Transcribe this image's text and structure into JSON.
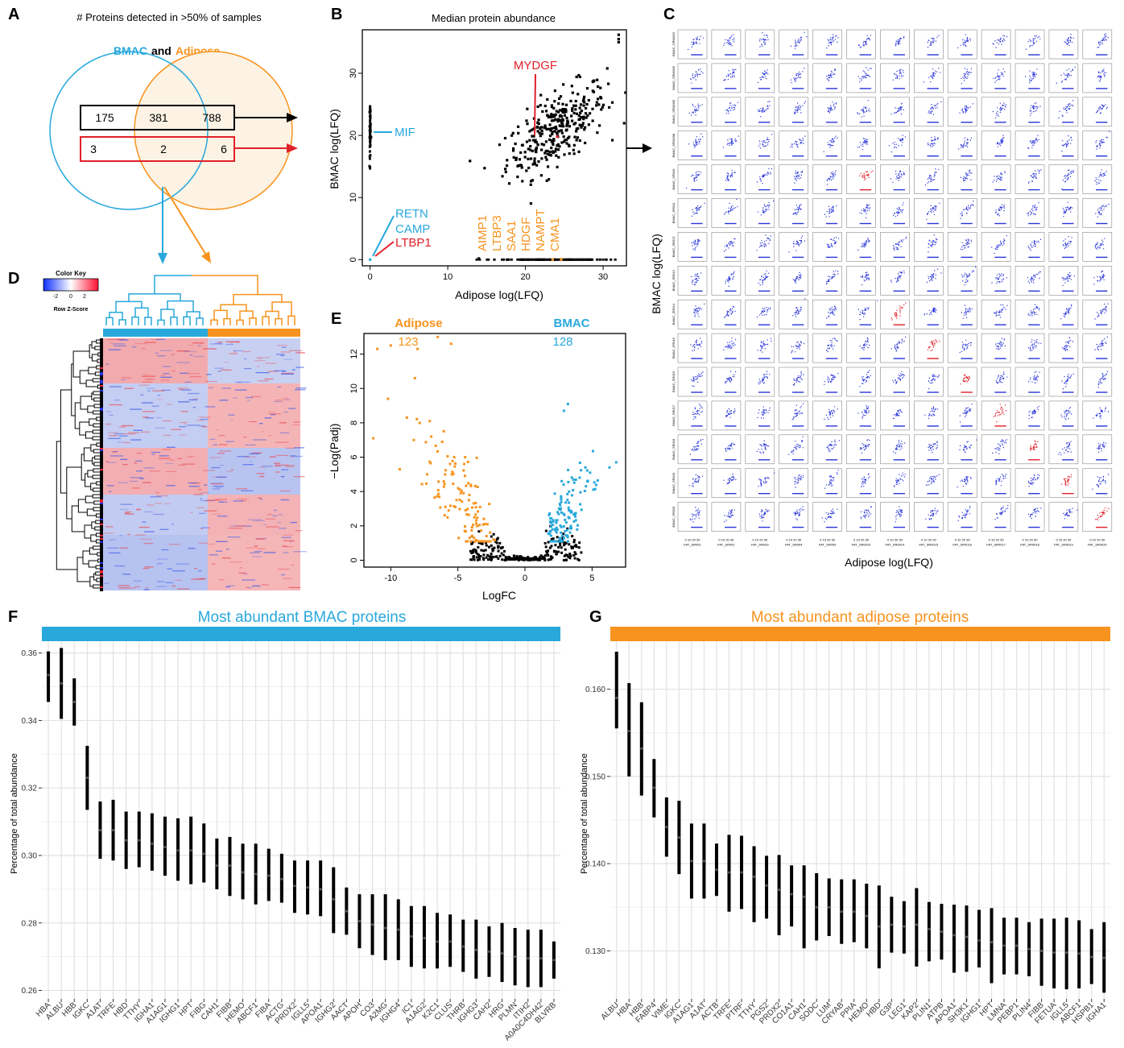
{
  "colors": {
    "bmac": "#29a8dc",
    "adipose": "#f7931e",
    "red": "#e0202a",
    "blue_points": "#1f2bd0",
    "black": "#000000"
  },
  "panels": {
    "A": "A",
    "B": "B",
    "C": "C",
    "D": "D",
    "E": "E",
    "F": "F",
    "G": "G"
  },
  "panel_a": {
    "title": "# Proteins detected in >50% of samples",
    "legend_bmac": "BMAC",
    "legend_and": "and",
    "legend_adipose": "Adipose",
    "row1": [
      "175",
      "381",
      "788"
    ],
    "row2": [
      "3",
      "2",
      "6"
    ]
  },
  "chart_data": [
    {
      "panel": "B",
      "type": "scatter",
      "title": "Median protein abundance",
      "xlabel": "Adipose log(LFQ)",
      "ylabel": "BMAC log(LFQ)",
      "xlim": [
        -1,
        33
      ],
      "ylim": [
        -1,
        37
      ],
      "xticks": [
        0,
        10,
        20,
        30
      ],
      "yticks": [
        0,
        10,
        20,
        30
      ],
      "labels_bmac": [
        "MIF",
        "RETN",
        "CAMP"
      ],
      "labels_red": [
        "MYDGF",
        "LTBP1"
      ],
      "labels_adipose": [
        "AIMP1",
        "LTBP3",
        "SAA1",
        "HDGF",
        "NAMPT",
        "CMA1"
      ]
    },
    {
      "panel": "C",
      "type": "scatter",
      "xlabel": "Adipose log(LFQ)",
      "ylabel": "BMAC log(LFQ)",
      "col_labels": [
        "FAT_SR001",
        "FAT_SR002",
        "FAT_SR003",
        "FAT_SR004",
        "FAT_SR009",
        "FAT_SR0010",
        "FAT_SR0014",
        "FAT_SR0015",
        "FAT_SR0016",
        "FAT_SR0017",
        "FAT_SR0018",
        "FAT_SR0019",
        "FAT_SR0020"
      ],
      "row_labels": [
        "BMAC_SRW003",
        "BMAC_SRW005",
        "BMAC_SRW006",
        "BMAC_SRW008",
        "BMAC_SR010",
        "BMAC_SR011",
        "BMAC_SR012",
        "BMAC_SR013",
        "BMAC_SR014",
        "BMAC_SR015",
        "BMAC_SR016",
        "BMAC_SR017",
        "BMAC_SR018",
        "BMAC_SR019",
        "BMAC_SR020"
      ],
      "highlighted_cells": [
        [
          4,
          5
        ],
        [
          8,
          6
        ],
        [
          9,
          7
        ],
        [
          10,
          8
        ],
        [
          11,
          9
        ],
        [
          12,
          10
        ],
        [
          13,
          11
        ],
        [
          14,
          12
        ]
      ],
      "tick_labels": "0 10 20 30"
    },
    {
      "panel": "D",
      "type": "heatmap",
      "color_key_title": "Color Key",
      "color_key_ticks": [
        "-2",
        "0",
        "2"
      ],
      "color_key_label": "Row Z-Score"
    },
    {
      "panel": "E",
      "type": "scatter",
      "xlabel": "LogFC",
      "ylabel": "−Log(Padj)",
      "xlim": [
        -12,
        7.5
      ],
      "ylim": [
        -0.4,
        13.2
      ],
      "xticks": [
        -10,
        -5,
        0,
        5
      ],
      "yticks": [
        0,
        2,
        4,
        6,
        8,
        10,
        12
      ],
      "group_left_label": "Adipose",
      "group_left_count": "123",
      "group_right_label": "BMAC",
      "group_right_count": "128"
    },
    {
      "panel": "F",
      "type": "errorbar",
      "title": "Most abundant BMAC proteins",
      "ylabel": "Percentage of total abundance",
      "ylim": [
        0.2575,
        0.3635
      ],
      "yticks": [
        0.26,
        0.28,
        0.3,
        0.32,
        0.34,
        0.36
      ],
      "ytick_labels": [
        "0.26",
        "0.28",
        "0.30",
        "0.32",
        "0.34",
        "0.36"
      ],
      "categories": [
        "HBA",
        "ALBU",
        "HBB",
        "IGKC",
        "A1AT",
        "TRFE",
        "HBD",
        "TTHY",
        "IGHA1",
        "A1AG1",
        "IGHG1",
        "HPT",
        "FIBG",
        "CAH1",
        "FIBB",
        "HEMO",
        "ABCF1",
        "FIBA",
        "ACTG",
        "PRDX2",
        "IGLL5",
        "APOA1",
        "IGHG2",
        "AACT",
        "APOH",
        "CO3",
        "A2MG",
        "IGHG4",
        "IC1",
        "A1AG2",
        "K2C1",
        "CLUS",
        "THRB",
        "IGHG3",
        "CAH2",
        "HRG",
        "PLMN",
        "ITIH2",
        "A0A0C4DH42",
        "BLVRB"
      ],
      "values": [
        0.3535,
        0.351,
        0.3455,
        0.323,
        0.3075,
        0.3075,
        0.3045,
        0.3045,
        0.3035,
        0.3025,
        0.3015,
        0.3015,
        0.3005,
        0.297,
        0.297,
        0.295,
        0.2945,
        0.294,
        0.293,
        0.291,
        0.2905,
        0.29,
        0.287,
        0.2835,
        0.2805,
        0.2795,
        0.2785,
        0.278,
        0.276,
        0.2755,
        0.2745,
        0.2745,
        0.273,
        0.272,
        0.2715,
        0.271,
        0.27,
        0.2695,
        0.2695,
        0.269
      ],
      "lower": [
        0.3455,
        0.3405,
        0.3385,
        0.3135,
        0.299,
        0.2985,
        0.296,
        0.2965,
        0.2955,
        0.294,
        0.2925,
        0.2915,
        0.292,
        0.29,
        0.288,
        0.287,
        0.2855,
        0.2865,
        0.286,
        0.283,
        0.2825,
        0.282,
        0.277,
        0.2765,
        0.2725,
        0.2705,
        0.269,
        0.269,
        0.267,
        0.2665,
        0.2665,
        0.267,
        0.2655,
        0.2635,
        0.264,
        0.2625,
        0.2615,
        0.261,
        0.261,
        0.2635
      ],
      "upper": [
        0.3605,
        0.3615,
        0.3525,
        0.3325,
        0.316,
        0.3165,
        0.313,
        0.313,
        0.3125,
        0.3115,
        0.311,
        0.3115,
        0.3095,
        0.305,
        0.3055,
        0.3035,
        0.3035,
        0.302,
        0.3005,
        0.2985,
        0.2985,
        0.2985,
        0.2965,
        0.2905,
        0.2885,
        0.2885,
        0.2885,
        0.287,
        0.285,
        0.285,
        0.283,
        0.2825,
        0.281,
        0.281,
        0.279,
        0.28,
        0.2785,
        0.278,
        0.278,
        0.2745
      ]
    },
    {
      "panel": "G",
      "type": "errorbar",
      "title": "Most abundant adipose proteins",
      "ylabel": "Percentage of total abundance",
      "ylim": [
        0.1245,
        0.1655
      ],
      "yticks": [
        0.13,
        0.14,
        0.15,
        0.16
      ],
      "ytick_labels": [
        "0.130",
        "0.140",
        "0.150",
        "0.160"
      ],
      "categories": [
        "ALBU",
        "HBA",
        "HBB",
        "FABP4",
        "VIME",
        "IGKC",
        "A1AG1",
        "A1AT",
        "ACTB",
        "TRFE",
        "PTRF",
        "TTHY",
        "PGS2",
        "PRDX2",
        "CO1A1",
        "CAH1",
        "SODC",
        "LUM",
        "CRYAB",
        "PPIA",
        "HEMO",
        "HBD",
        "G3P",
        "LEG1",
        "KAP2",
        "PLIN1",
        "ATPB",
        "APOA1",
        "SH3K1",
        "IGHG1",
        "HPT",
        "LMNA",
        "PEBP1",
        "PLIN4",
        "FIBB",
        "FETUA",
        "IGLL5",
        "ABCF1",
        "HSPB1",
        "IGHA1"
      ],
      "values": [
        0.159,
        0.1552,
        0.1532,
        0.1487,
        0.1442,
        0.143,
        0.1403,
        0.1403,
        0.1393,
        0.139,
        0.139,
        0.1385,
        0.1375,
        0.137,
        0.1365,
        0.1362,
        0.135,
        0.135,
        0.1345,
        0.1345,
        0.134,
        0.1328,
        0.133,
        0.1328,
        0.133,
        0.1325,
        0.1322,
        0.1318,
        0.1316,
        0.1312,
        0.131,
        0.1306,
        0.1306,
        0.1302,
        0.13,
        0.1298,
        0.1298,
        0.1297,
        0.1293,
        0.1292
      ],
      "lower": [
        0.1555,
        0.15,
        0.1478,
        0.1453,
        0.1408,
        0.1388,
        0.136,
        0.136,
        0.1363,
        0.1345,
        0.1348,
        0.1333,
        0.1337,
        0.1318,
        0.1328,
        0.1303,
        0.1312,
        0.1317,
        0.1308,
        0.131,
        0.1303,
        0.128,
        0.1298,
        0.1297,
        0.1282,
        0.1288,
        0.129,
        0.1275,
        0.1276,
        0.1281,
        0.1263,
        0.1273,
        0.1273,
        0.1271,
        0.126,
        0.1257,
        0.1256,
        0.1257,
        0.1262,
        0.1252
      ],
      "upper": [
        0.1643,
        0.1607,
        0.1585,
        0.152,
        0.1476,
        0.1472,
        0.1446,
        0.1446,
        0.1423,
        0.1433,
        0.1432,
        0.142,
        0.1409,
        0.141,
        0.1398,
        0.1398,
        0.1389,
        0.1383,
        0.1382,
        0.1382,
        0.1377,
        0.1375,
        0.1362,
        0.1357,
        0.1372,
        0.1356,
        0.1354,
        0.1353,
        0.1352,
        0.1347,
        0.1349,
        0.1338,
        0.1338,
        0.1333,
        0.1337,
        0.1337,
        0.1338,
        0.1335,
        0.1325,
        0.1333
      ]
    }
  ]
}
